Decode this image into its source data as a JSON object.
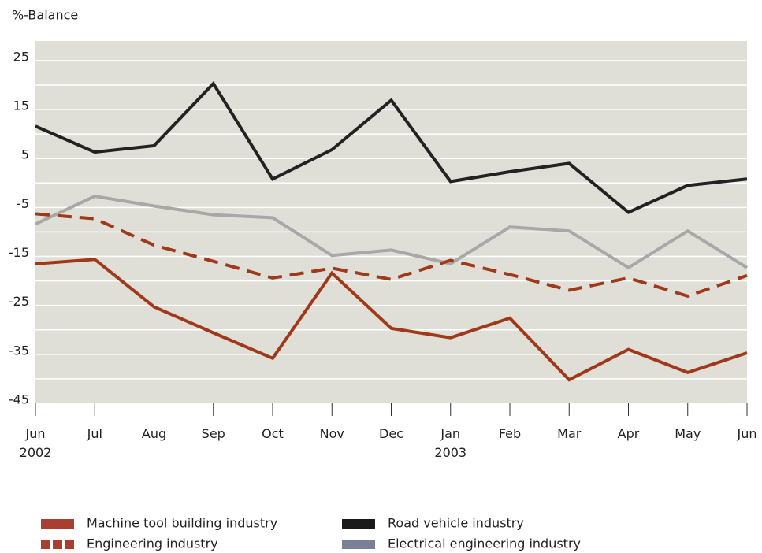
{
  "chart_data": {
    "type": "line",
    "y_label": "%-Balance",
    "categories": [
      "Jun\n2002",
      "Jul",
      "Aug",
      "Sep",
      "Oct",
      "Nov",
      "Dec",
      "Jan\n2003",
      "Feb",
      "Mar",
      "Apr",
      "May",
      "Jun"
    ],
    "series": [
      {
        "name": "Machine tool building industry",
        "color": "#a0391a",
        "legend_color": "#a84032",
        "dash": false,
        "values": [
          -16.5,
          -15.6,
          -25.3,
          -30.6,
          -35.8,
          -18.4,
          -29.7,
          -31.6,
          -27.6,
          -40.2,
          -34,
          -38.7,
          -34.7
        ]
      },
      {
        "name": "Engineering industry",
        "color": "#a0391a",
        "legend_color": "#a84032",
        "dash": true,
        "values": [
          -6.3,
          -7.3,
          -12.7,
          -16,
          -19.4,
          -17.4,
          -19.7,
          -15.8,
          -18.7,
          -21.9,
          -19.4,
          -23.1,
          -18.9
        ]
      },
      {
        "name": "Road vehicle industry",
        "color": "#222222",
        "legend_color": "#1a1a1a",
        "dash": false,
        "values": [
          11.6,
          6.3,
          7.6,
          20.3,
          0.8,
          6.8,
          16.9,
          0.3,
          2.3,
          4,
          -6,
          -0.5,
          0.8
        ]
      },
      {
        "name": "Electrical engineering industry",
        "color": "#a8a8a8",
        "legend_color": "#7b8099",
        "dash": false,
        "values": [
          -8.4,
          -2.7,
          -4.7,
          -6.5,
          -7.1,
          -14.8,
          -13.7,
          -16.5,
          -9,
          -9.8,
          -17.3,
          -9.8,
          -17.3
        ]
      }
    ],
    "ylim": [
      -45,
      29
    ],
    "yticks": [
      -45,
      -35,
      -25,
      -15,
      -5,
      5,
      15,
      25
    ],
    "grid": true
  }
}
